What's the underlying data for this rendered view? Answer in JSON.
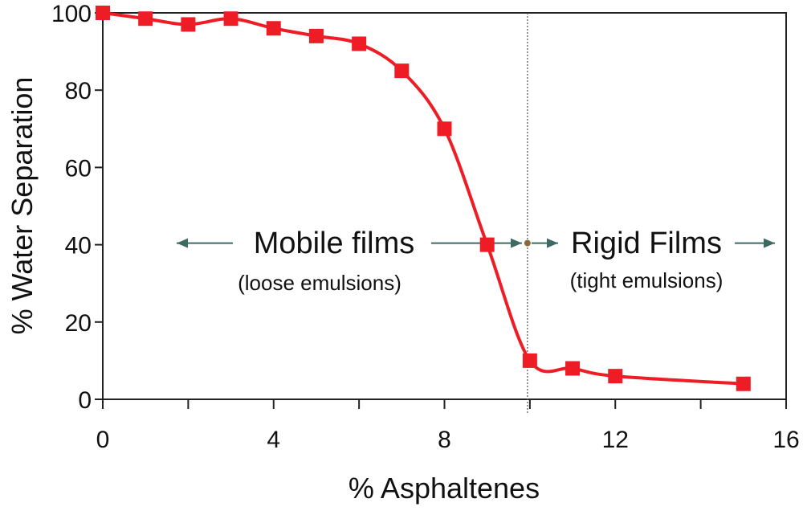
{
  "chart_data": {
    "type": "line",
    "title": "",
    "xlabel": "% Asphaltenes",
    "ylabel": "% Water Separation",
    "xlim": [
      0,
      16
    ],
    "ylim": [
      0,
      100
    ],
    "xticks": [
      0,
      4,
      8,
      12,
      16
    ],
    "xticks_minor": [
      2,
      6,
      10,
      14
    ],
    "yticks": [
      0,
      20,
      40,
      60,
      80,
      100
    ],
    "grid": false,
    "series": [
      {
        "color": "#ee1c24",
        "marker": "square",
        "smooth": true,
        "x": [
          0,
          1,
          2,
          3,
          4,
          5,
          6,
          7,
          8,
          9,
          10,
          11,
          12,
          15
        ],
        "y": [
          100,
          98.5,
          97,
          98.5,
          96,
          94,
          92,
          85,
          70,
          40,
          10,
          8,
          6,
          4
        ]
      }
    ],
    "reference_line": {
      "x": 10,
      "style": "dotted"
    },
    "annotations": {
      "left_title": "Mobile films",
      "left_sub": "(loose emulsions)",
      "right_title": "Rigid Films",
      "right_sub": "(tight emulsions)",
      "arrow_color": "#3d6b63"
    }
  }
}
